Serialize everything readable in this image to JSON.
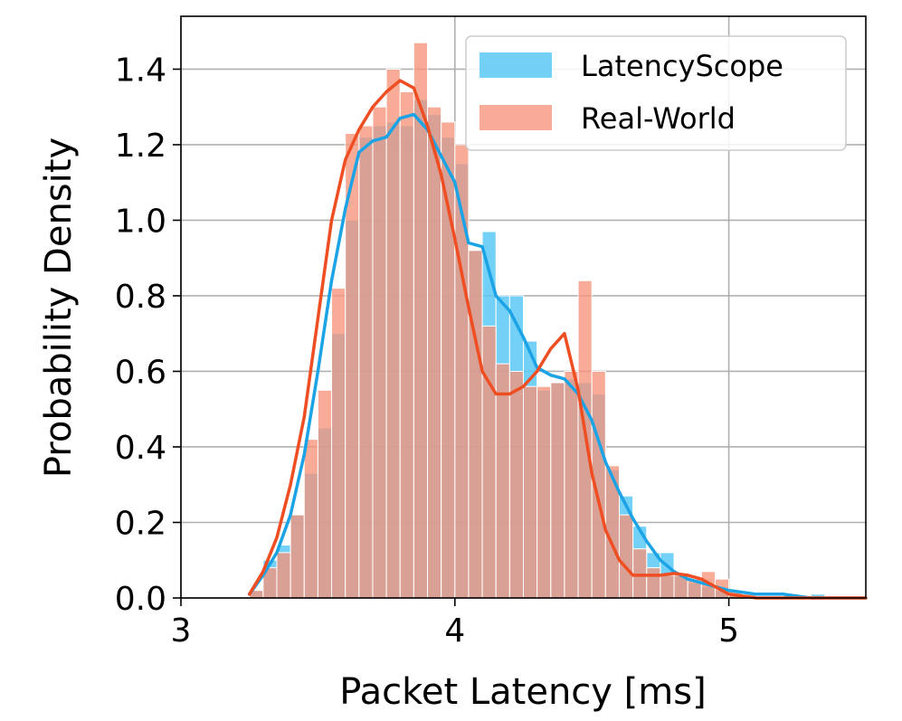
{
  "chart_data": {
    "type": "histogram",
    "title": "",
    "xlabel": "Packet Latency [ms]",
    "ylabel": "Probability Density",
    "xlim": [
      3.0,
      5.5
    ],
    "ylim": [
      0.0,
      1.54
    ],
    "x_ticks": [
      "3",
      "4",
      "5"
    ],
    "y_ticks": [
      "0.0",
      "0.2",
      "0.4",
      "0.6",
      "0.8",
      "1.0",
      "1.2",
      "1.4"
    ],
    "grid": true,
    "legend_position": "top-right",
    "bin_width": 0.05,
    "bin_starts": [
      3.25,
      3.3,
      3.35,
      3.4,
      3.45,
      3.5,
      3.55,
      3.6,
      3.65,
      3.7,
      3.75,
      3.8,
      3.85,
      3.9,
      3.95,
      4.0,
      4.05,
      4.1,
      4.15,
      4.2,
      4.25,
      4.3,
      4.35,
      4.4,
      4.45,
      4.5,
      4.55,
      4.6,
      4.65,
      4.7,
      4.75,
      4.8,
      4.85,
      4.9,
      4.95,
      5.0,
      5.05,
      5.1,
      5.15,
      5.2,
      5.25,
      5.3
    ],
    "series": [
      {
        "name": "LatencyScope",
        "color": "#5bc8f5",
        "line_color": "#1ca3e6",
        "hist": [
          0.02,
          0.1,
          0.14,
          0.22,
          0.33,
          0.45,
          0.7,
          1.0,
          1.22,
          1.25,
          1.26,
          1.25,
          1.32,
          1.28,
          1.22,
          1.15,
          0.92,
          0.97,
          0.8,
          0.8,
          0.68,
          0.55,
          0.57,
          0.58,
          0.57,
          0.54,
          0.34,
          0.27,
          0.19,
          0.12,
          0.12,
          0.06,
          0.04,
          0.03,
          0.02,
          0.01,
          0.0,
          0.0,
          0.0,
          0.01,
          0.0,
          0.01
        ],
        "kde_x": [
          3.25,
          3.3,
          3.35,
          3.4,
          3.45,
          3.5,
          3.55,
          3.6,
          3.65,
          3.7,
          3.75,
          3.8,
          3.85,
          3.9,
          3.95,
          4.0,
          4.05,
          4.1,
          4.15,
          4.2,
          4.25,
          4.3,
          4.35,
          4.4,
          4.45,
          4.5,
          4.55,
          4.6,
          4.65,
          4.7,
          4.75,
          4.8,
          4.85,
          4.9,
          4.95,
          5.0,
          5.1,
          5.2,
          5.3,
          5.4,
          5.5
        ],
        "kde_y": [
          0.01,
          0.06,
          0.12,
          0.22,
          0.38,
          0.6,
          0.84,
          1.03,
          1.18,
          1.21,
          1.22,
          1.27,
          1.28,
          1.24,
          1.17,
          1.1,
          0.94,
          0.93,
          0.8,
          0.76,
          0.69,
          0.61,
          0.59,
          0.58,
          0.54,
          0.47,
          0.36,
          0.28,
          0.21,
          0.15,
          0.1,
          0.07,
          0.05,
          0.04,
          0.03,
          0.02,
          0.01,
          0.01,
          0.0,
          0.0,
          0.0
        ]
      },
      {
        "name": "Real-World",
        "color": "#f6937a",
        "line_color": "#ef4e23",
        "hist": [
          0.02,
          0.08,
          0.12,
          0.22,
          0.42,
          0.55,
          0.82,
          1.23,
          1.25,
          1.3,
          1.4,
          1.34,
          1.47,
          1.3,
          1.26,
          1.2,
          0.92,
          0.72,
          0.62,
          0.6,
          0.56,
          0.56,
          0.57,
          0.6,
          0.84,
          0.6,
          0.35,
          0.22,
          0.13,
          0.08,
          0.06,
          0.06,
          0.05,
          0.07,
          0.05,
          0.02,
          0.01,
          0.0,
          0.0,
          0.0,
          0.0,
          0.0
        ],
        "kde_x": [
          3.25,
          3.3,
          3.35,
          3.4,
          3.45,
          3.5,
          3.55,
          3.6,
          3.65,
          3.7,
          3.75,
          3.8,
          3.85,
          3.9,
          3.95,
          4.0,
          4.05,
          4.1,
          4.15,
          4.2,
          4.25,
          4.3,
          4.35,
          4.4,
          4.45,
          4.5,
          4.55,
          4.6,
          4.65,
          4.7,
          4.75,
          4.8,
          4.85,
          4.9,
          4.95,
          5.0,
          5.1,
          5.2,
          5.3,
          5.4,
          5.5
        ],
        "kde_y": [
          0.01,
          0.07,
          0.16,
          0.3,
          0.48,
          0.74,
          1.0,
          1.16,
          1.24,
          1.3,
          1.34,
          1.37,
          1.35,
          1.25,
          1.12,
          0.95,
          0.77,
          0.6,
          0.54,
          0.54,
          0.56,
          0.6,
          0.66,
          0.7,
          0.55,
          0.33,
          0.18,
          0.1,
          0.06,
          0.06,
          0.06,
          0.065,
          0.06,
          0.05,
          0.03,
          0.01,
          0.0,
          0.0,
          0.0,
          0.0,
          0.0
        ]
      }
    ]
  }
}
